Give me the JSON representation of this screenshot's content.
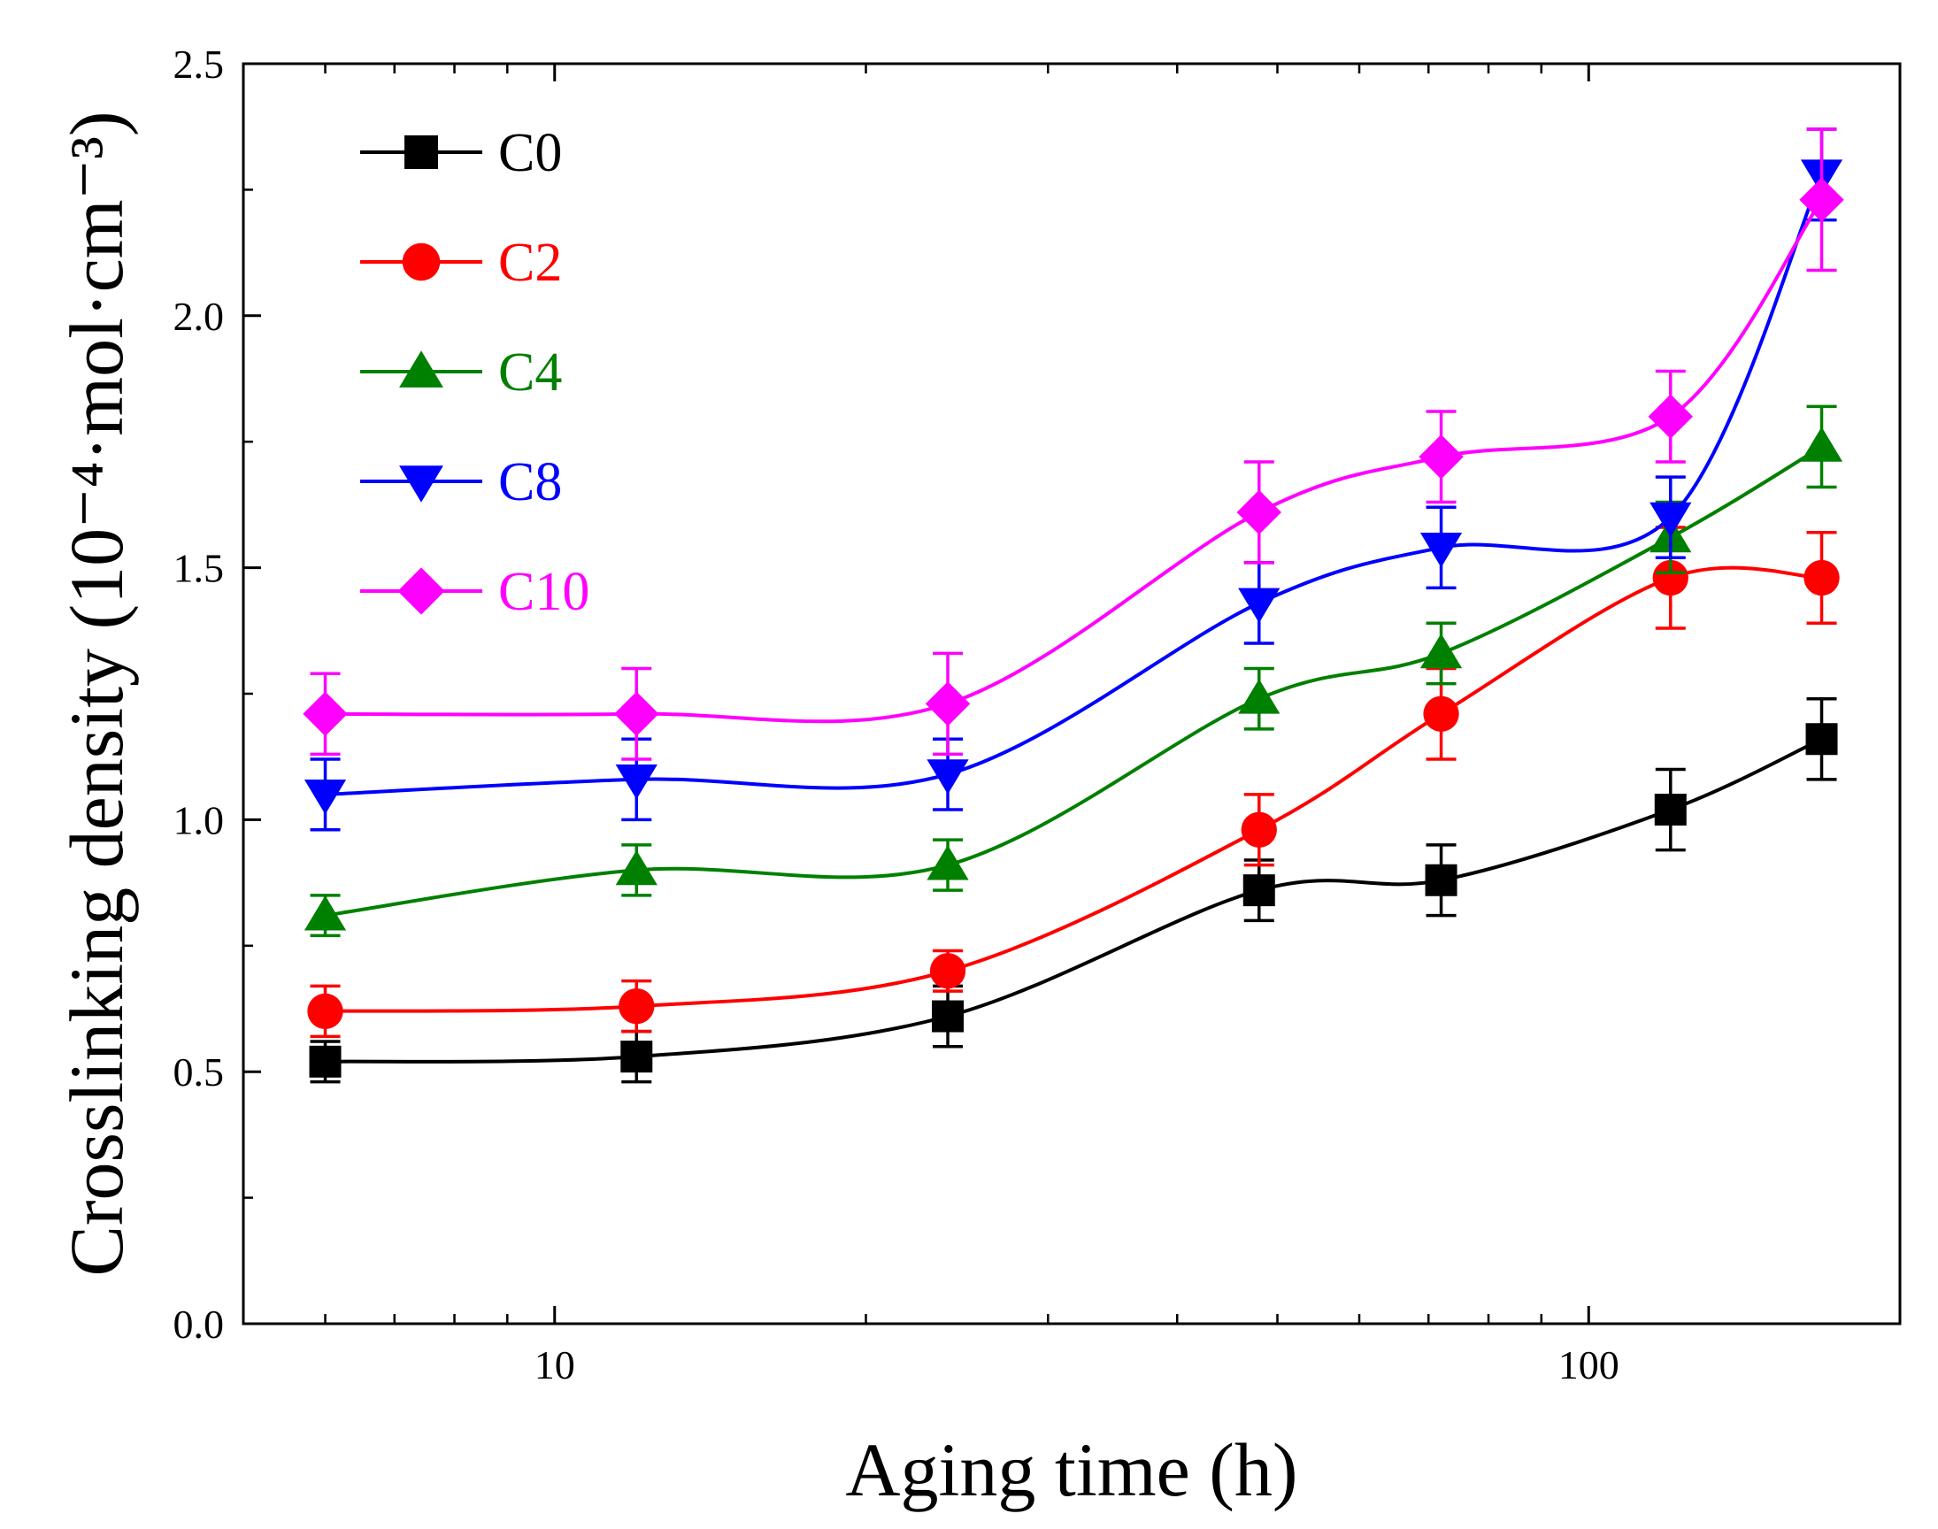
{
  "chart_data": {
    "type": "line",
    "xscale": "log",
    "xlabel": "Aging time (h)",
    "ylabel": "Crosslinking density (10⁻⁴·mol·cm⁻³)",
    "xlim": [
      5,
      200
    ],
    "ylim": [
      0,
      2.5
    ],
    "x_ticks": [
      10,
      100
    ],
    "x_tick_labels": [
      "10",
      "100"
    ],
    "y_ticks": [
      0.0,
      0.5,
      1.0,
      1.5,
      2.0,
      2.5
    ],
    "y_tick_labels": [
      "0.0",
      "0.5",
      "1.0",
      "1.5",
      "2.0",
      "2.5"
    ],
    "legend_position": "top-left",
    "x": [
      6,
      12,
      24,
      48,
      72,
      120,
      168
    ],
    "series": [
      {
        "name": "C0",
        "color": "#000000",
        "marker": "square",
        "values": [
          0.52,
          0.53,
          0.61,
          0.86,
          0.88,
          1.02,
          1.16
        ],
        "errors": [
          0.04,
          0.05,
          0.06,
          0.06,
          0.07,
          0.08,
          0.08
        ]
      },
      {
        "name": "C2",
        "color": "#ff0000",
        "marker": "circle",
        "values": [
          0.62,
          0.63,
          0.7,
          0.98,
          1.21,
          1.48,
          1.48
        ],
        "errors": [
          0.05,
          0.05,
          0.04,
          0.07,
          0.09,
          0.1,
          0.09
        ]
      },
      {
        "name": "C4",
        "color": "#008000",
        "marker": "triangle-up",
        "values": [
          0.81,
          0.9,
          0.91,
          1.24,
          1.33,
          1.56,
          1.74
        ],
        "errors": [
          0.04,
          0.05,
          0.05,
          0.06,
          0.06,
          0.07,
          0.08
        ]
      },
      {
        "name": "C8",
        "color": "#0000ff",
        "marker": "triangle-down",
        "values": [
          1.05,
          1.08,
          1.09,
          1.43,
          1.54,
          1.6,
          2.28
        ],
        "errors": [
          0.07,
          0.08,
          0.07,
          0.08,
          0.08,
          0.08,
          0.09
        ]
      },
      {
        "name": "C10",
        "color": "#ff00ff",
        "marker": "diamond",
        "values": [
          1.21,
          1.21,
          1.23,
          1.61,
          1.72,
          1.8,
          2.23
        ],
        "errors": [
          0.08,
          0.09,
          0.1,
          0.1,
          0.09,
          0.09,
          0.14
        ]
      }
    ]
  }
}
